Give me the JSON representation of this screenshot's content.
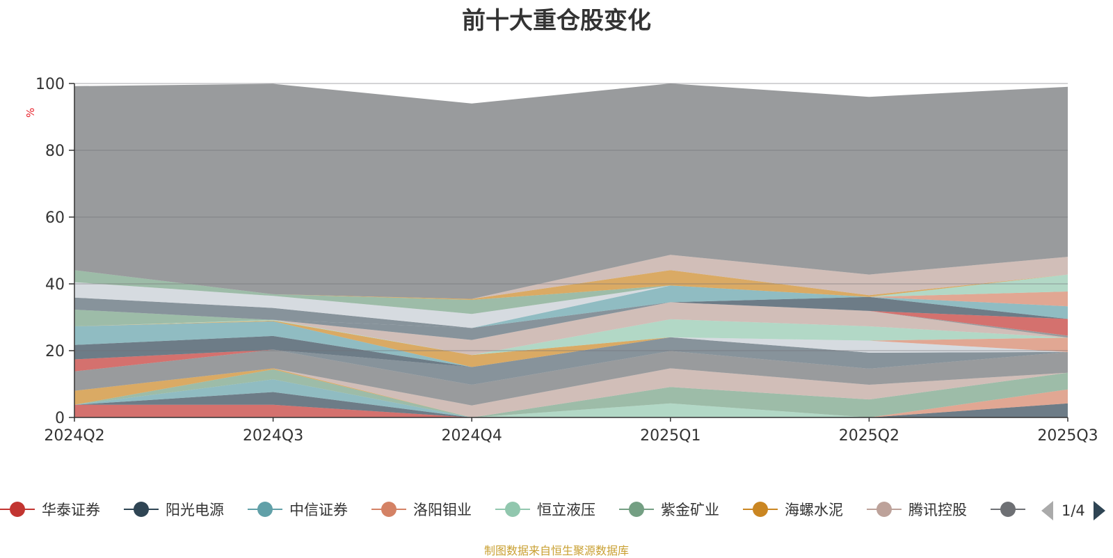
{
  "header": {
    "title": "前十大重仓股变化"
  },
  "chart_data": {
    "type": "area",
    "stacked": true,
    "title": "前十大重仓股变化",
    "ylabel": "%",
    "ylim": [
      0,
      100
    ],
    "yticks": [
      "0",
      "20",
      "40",
      "60",
      "80",
      "100"
    ],
    "categories": [
      "2024Q2",
      "2024Q3",
      "2024Q4",
      "2025Q1",
      "2025Q2",
      "2025Q3"
    ],
    "series": [
      {
        "name": "华泰证券",
        "color": "#c23531",
        "values": [
          3.8,
          3.8,
          0,
          0,
          0,
          0
        ]
      },
      {
        "name": "阳光电源",
        "color": "#2f4554",
        "values": [
          0,
          3.8,
          0,
          0,
          0,
          4.2
        ]
      },
      {
        "name": "中信证券",
        "color": "#61a0a8",
        "values": [
          0,
          3.8,
          0,
          0,
          0,
          0
        ]
      },
      {
        "name": "洛阳钼业",
        "color": "#d48265",
        "values": [
          0,
          0,
          0,
          0,
          0,
          4.2
        ]
      },
      {
        "name": "恒立液压",
        "color": "#91c7ae",
        "values": [
          0,
          0,
          0,
          4.2,
          0,
          0
        ]
      },
      {
        "name": "紫金矿业",
        "color": "#749f83",
        "values": [
          0,
          3,
          0,
          4.9,
          5.4,
          5
        ]
      },
      {
        "name": "海螺水泥",
        "color": "#ca8622",
        "values": [
          4.2,
          0.3,
          0,
          0,
          0,
          0
        ]
      },
      {
        "name": "腾讯控股",
        "color": "#bda29a",
        "values": [
          0,
          0,
          3.6,
          5.6,
          4.4,
          0
        ]
      },
      {
        "name": "",
        "color": "#6e7074",
        "values": [
          5.8,
          5.6,
          6.2,
          5.2,
          4.8,
          6.2
        ]
      },
      {
        "name": "",
        "color": "#546570",
        "values": [
          0,
          0,
          5.3,
          4.1,
          4.8,
          0
        ]
      },
      {
        "name": "",
        "color": "#c4ccd3",
        "values": [
          0,
          0,
          0,
          0,
          3.6,
          0
        ]
      },
      {
        "name": "",
        "color": "#c23531",
        "values": [
          3.6,
          0,
          0,
          0,
          0,
          0
        ]
      },
      {
        "name": "",
        "color": "#2f4554",
        "values": [
          4.3,
          4.1,
          0,
          0,
          0,
          0
        ]
      },
      {
        "name": "",
        "color": "#61a0a8",
        "values": [
          5.6,
          4.4,
          0,
          0,
          0,
          0
        ]
      },
      {
        "name": "",
        "color": "#d48265",
        "values": [
          0,
          0,
          0,
          0,
          0,
          4.3
        ]
      },
      {
        "name": "",
        "color": "#ca8622",
        "values": [
          0,
          0.2,
          3.6,
          0,
          0,
          0
        ]
      },
      {
        "name": "",
        "color": "#91c7ae",
        "values": [
          0,
          0.2,
          0,
          5.4,
          4.3,
          0
        ]
      },
      {
        "name": "",
        "color": "#bda29a",
        "values": [
          0,
          0,
          4.5,
          5.1,
          4.6,
          0
        ]
      },
      {
        "name": "",
        "color": "#6e7074",
        "values": [
          0,
          0,
          0,
          0,
          0,
          0.6
        ]
      },
      {
        "name": "",
        "color": "#546570",
        "values": [
          0,
          0,
          3.6,
          0,
          0,
          0
        ]
      },
      {
        "name": "",
        "color": "#c23531",
        "values": [
          0,
          0,
          0,
          0,
          0,
          5
        ]
      },
      {
        "name": "",
        "color": "#2f4554",
        "values": [
          0,
          0,
          0,
          0,
          4.2,
          0
        ]
      },
      {
        "name": "",
        "color": "#61a0a8",
        "values": [
          0,
          0,
          0,
          5,
          0,
          3.8
        ]
      },
      {
        "name": "",
        "color": "#d48265",
        "values": [
          0,
          0,
          0,
          0,
          0,
          4.4
        ]
      },
      {
        "name": "",
        "color": "#749f83",
        "values": [
          5,
          0,
          0,
          0,
          0,
          0
        ]
      },
      {
        "name": "",
        "color": "#546570",
        "values": [
          3.6,
          3.6,
          0,
          0,
          0,
          0
        ]
      },
      {
        "name": "",
        "color": "#c4ccd3",
        "values": [
          4.6,
          3.6,
          4.2,
          0,
          0,
          0
        ]
      },
      {
        "name": "",
        "color": "#749f83",
        "values": [
          3.6,
          0.5,
          4.2,
          0,
          0,
          0
        ]
      },
      {
        "name": "",
        "color": "#91c7ae",
        "values": [
          0,
          0,
          0,
          0,
          0,
          5.1
        ]
      },
      {
        "name": "",
        "color": "#ca8622",
        "values": [
          0,
          0,
          0.3,
          4.6,
          0.5,
          0
        ]
      },
      {
        "name": "",
        "color": "#bda29a",
        "values": [
          0,
          0,
          0,
          4.6,
          6.2,
          5.3
        ]
      },
      {
        "name": "",
        "color": "#6e7074",
        "values": [
          55.1,
          63,
          58.5,
          51.3,
          53.2,
          50.9
        ]
      }
    ]
  },
  "legend": {
    "items": [
      {
        "name": "华泰证券",
        "color": "#c23531"
      },
      {
        "name": "阳光电源",
        "color": "#2f4554"
      },
      {
        "name": "中信证券",
        "color": "#61a0a8"
      },
      {
        "name": "洛阳钼业",
        "color": "#d48265"
      },
      {
        "name": "恒立液压",
        "color": "#91c7ae"
      },
      {
        "name": "紫金矿业",
        "color": "#749f83"
      },
      {
        "name": "海螺水泥",
        "color": "#ca8622"
      },
      {
        "name": "腾讯控股",
        "color": "#bda29a"
      },
      {
        "name": "",
        "color": "#6e7074"
      }
    ],
    "page_indicator": "1/4"
  },
  "footer": {
    "source": "制图数据来自恒生聚源数据库"
  }
}
